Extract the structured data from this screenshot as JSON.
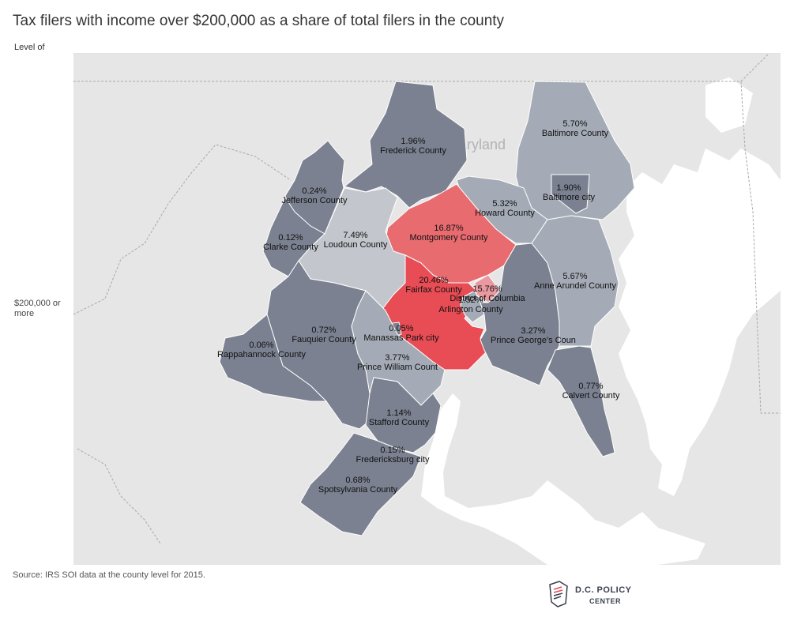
{
  "title": "Tax filers with income over $200,000 as a share of total filers in the county",
  "row_header": "Level of",
  "row_label": "$200,000 or more",
  "state_label": "Maryland",
  "source": "Source: IRS SOI data at the county level for 2015.",
  "logo": {
    "line1": "D.C. POLICY",
    "line2": "CENTER",
    "icon": "document-icon"
  },
  "colors": {
    "low": "#7b8190",
    "mid": "#a5abb6",
    "light": "#c3c6cc",
    "high": "#e86b70",
    "highest": "#e84c55",
    "dc": "#e89aa0"
  },
  "counties": [
    {
      "name": "Frederick County",
      "value": "1.96%"
    },
    {
      "name": "Baltimore County",
      "value": "5.70%"
    },
    {
      "name": "Baltimore city",
      "value": "1.90%"
    },
    {
      "name": "Howard County",
      "value": "5.32%"
    },
    {
      "name": "Montgomery County",
      "value": "16.87%"
    },
    {
      "name": "Jefferson County",
      "value": "0.24%"
    },
    {
      "name": "Clarke County",
      "value": "0.12%"
    },
    {
      "name": "Loudoun County",
      "value": "7.49%"
    },
    {
      "name": "Fairfax County",
      "value": "20.46%"
    },
    {
      "name": "District of Columbia",
      "value": "15.76%"
    },
    {
      "name": "Arlington County",
      "value": "1.52%"
    },
    {
      "name": "Anne Arundel County",
      "value": "5.67%"
    },
    {
      "name": "Fauquier County",
      "value": "0.72%"
    },
    {
      "name": "Manassas Park city",
      "value": "0.05%"
    },
    {
      "name": "Rappahannock County",
      "value": "0.06%"
    },
    {
      "name": "Prince George's Coun",
      "value": "3.27%"
    },
    {
      "name": "Prince William Count",
      "value": "3.77%"
    },
    {
      "name": "Calvert County",
      "value": "0.77%"
    },
    {
      "name": "Stafford County",
      "value": "1.14%"
    },
    {
      "name": "Fredericksburg city",
      "value": "0.15%"
    },
    {
      "name": "Spotsylvania County",
      "value": "0.68%"
    }
  ]
}
